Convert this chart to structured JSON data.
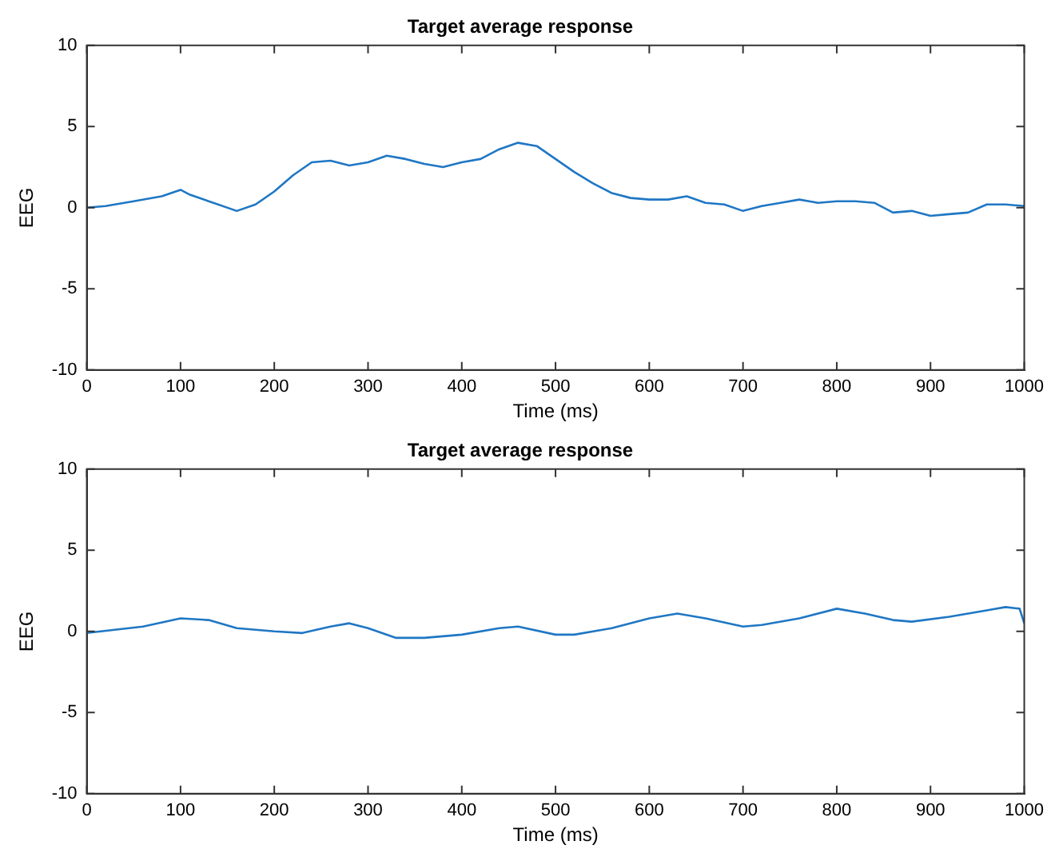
{
  "chart_data": [
    {
      "type": "line",
      "title": "Target average response",
      "xlabel": "Time (ms)",
      "ylabel": "EEG",
      "xlim": [
        0,
        1000
      ],
      "xticks": [
        0,
        100,
        200,
        300,
        400,
        500,
        600,
        700,
        800,
        900,
        1000
      ],
      "ylim": [
        -10,
        10
      ],
      "yticks": [
        -10,
        -5,
        0,
        5,
        10
      ],
      "grid": false,
      "legend": false,
      "marker": "none",
      "series": [
        {
          "color": "#1f77c4",
          "x": [
            0,
            20,
            50,
            80,
            100,
            110,
            130,
            160,
            180,
            200,
            220,
            240,
            260,
            280,
            300,
            320,
            340,
            360,
            380,
            400,
            420,
            440,
            460,
            480,
            500,
            520,
            540,
            560,
            580,
            600,
            620,
            640,
            660,
            680,
            700,
            720,
            740,
            760,
            780,
            800,
            820,
            840,
            860,
            880,
            900,
            920,
            940,
            960,
            980,
            1000
          ],
          "values": [
            0,
            0.1,
            0.4,
            0.7,
            1.1,
            0.8,
            0.4,
            -0.2,
            0.2,
            1.0,
            2.0,
            2.8,
            2.9,
            2.6,
            2.8,
            3.2,
            3.0,
            2.7,
            2.5,
            2.8,
            3.0,
            3.6,
            4.0,
            3.8,
            3.0,
            2.2,
            1.5,
            0.9,
            0.6,
            0.5,
            0.5,
            0.7,
            0.3,
            0.2,
            -0.2,
            0.1,
            0.3,
            0.5,
            0.3,
            0.4,
            0.4,
            0.3,
            -0.3,
            -0.2,
            -0.5,
            -0.4,
            -0.3,
            0.2,
            0.2,
            0.1
          ]
        }
      ]
    },
    {
      "type": "line",
      "title": "Target average response",
      "xlabel": "Time (ms)",
      "ylabel": "EEG",
      "xlim": [
        0,
        1000
      ],
      "xticks": [
        0,
        100,
        200,
        300,
        400,
        500,
        600,
        700,
        800,
        900,
        1000
      ],
      "ylim": [
        -10,
        10
      ],
      "yticks": [
        -10,
        -5,
        0,
        5,
        10
      ],
      "grid": false,
      "legend": false,
      "marker": "none",
      "series": [
        {
          "color": "#1f77c4",
          "x": [
            0,
            30,
            60,
            100,
            130,
            160,
            200,
            230,
            260,
            280,
            300,
            330,
            360,
            400,
            440,
            460,
            500,
            520,
            560,
            600,
            630,
            660,
            700,
            720,
            760,
            800,
            830,
            860,
            880,
            920,
            960,
            980,
            995,
            1000
          ],
          "values": [
            -0.1,
            0.1,
            0.3,
            0.8,
            0.7,
            0.2,
            0.0,
            -0.1,
            0.3,
            0.5,
            0.2,
            -0.4,
            -0.4,
            -0.2,
            0.2,
            0.3,
            -0.2,
            -0.2,
            0.2,
            0.8,
            1.1,
            0.8,
            0.3,
            0.4,
            0.8,
            1.4,
            1.1,
            0.7,
            0.6,
            0.9,
            1.3,
            1.5,
            1.4,
            0.5
          ]
        }
      ]
    }
  ]
}
